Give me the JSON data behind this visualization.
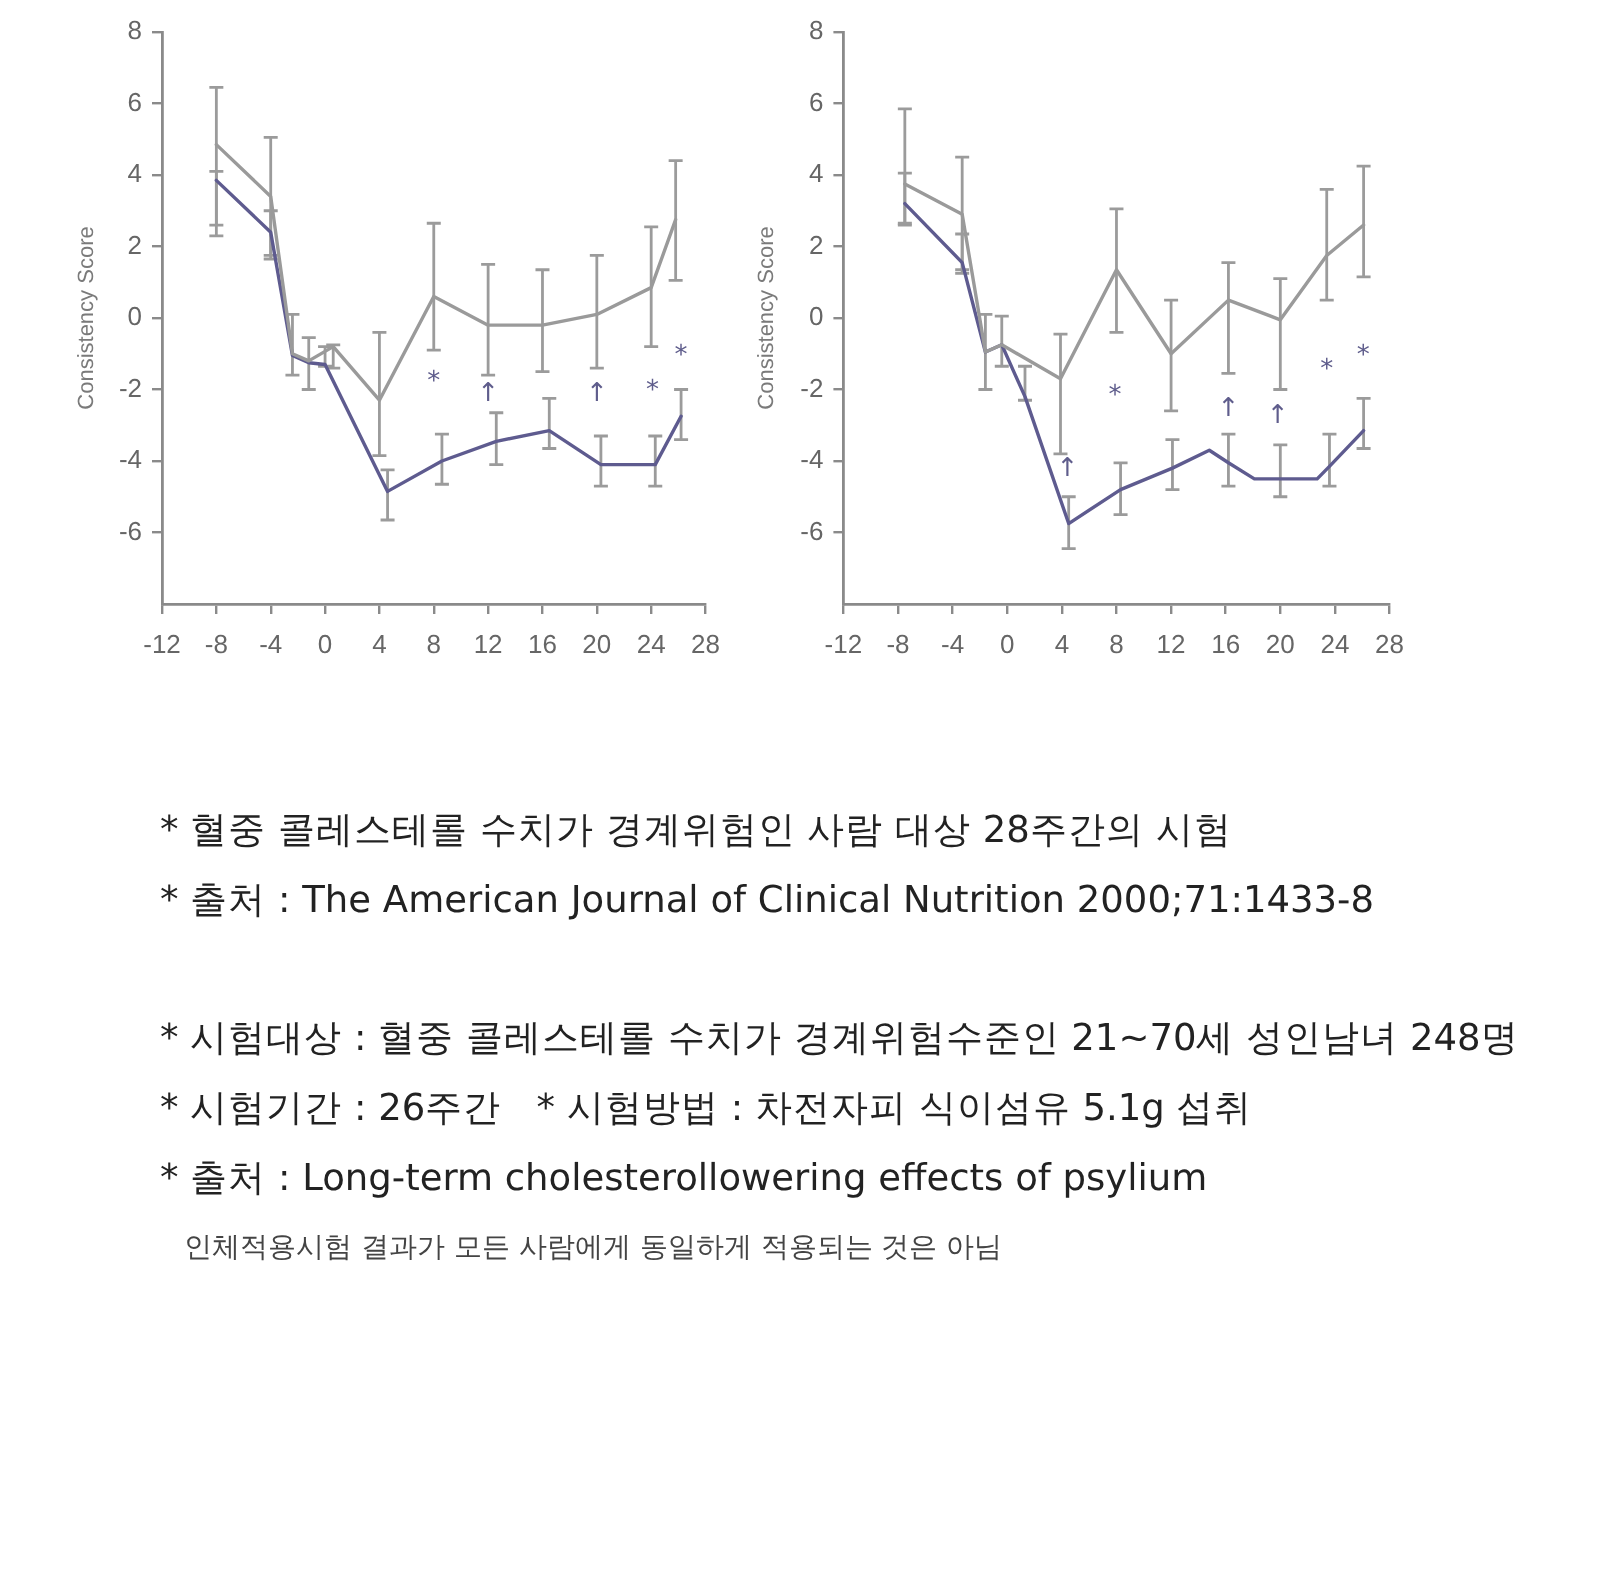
{
  "chart_data": [
    {
      "type": "line",
      "ylabel": "Consistency Score",
      "xlim": [
        -12,
        28
      ],
      "xticks": [
        -12,
        -8,
        -4,
        0,
        4,
        8,
        12,
        16,
        20,
        24,
        28
      ],
      "ylim": [
        -8,
        8
      ],
      "yticks": [
        8,
        6,
        4,
        2,
        0,
        -2,
        -4,
        -6
      ],
      "series": [
        {
          "color": "#9a9a9a",
          "x": [
            -8,
            -4,
            -2.4,
            -1.2,
            0.6,
            4,
            8,
            12,
            16,
            20,
            24,
            25.8
          ],
          "values": [
            4.85,
            3.4,
            -1.0,
            -1.2,
            -0.8,
            -2.3,
            0.6,
            -0.2,
            -0.2,
            0.1,
            0.85,
            2.75
          ],
          "errors": [
            [
              2.6,
              6.45
            ],
            [
              1.75,
              5.05
            ],
            [
              -1.6,
              0.1
            ],
            [
              -2.0,
              -0.55
            ],
            [
              -1.4,
              -0.75
            ],
            [
              -3.85,
              -0.4
            ],
            [
              -0.9,
              2.65
            ],
            [
              -1.6,
              1.5
            ],
            [
              -1.5,
              1.35
            ],
            [
              -1.4,
              1.75
            ],
            [
              -0.8,
              2.55
            ],
            [
              1.05,
              4.4
            ]
          ]
        },
        {
          "color": "#5e5b8f",
          "x": [
            -8,
            -4,
            -2.4,
            -1.2,
            0,
            4.6,
            8.6,
            12.6,
            16.5,
            20.3,
            24.3,
            26.2
          ],
          "values": [
            3.85,
            2.4,
            -1.05,
            -1.25,
            -1.3,
            -4.85,
            -4.0,
            -3.45,
            -3.15,
            -4.1,
            -4.1,
            -2.75
          ],
          "errors": [
            [
              2.3,
              4.1
            ],
            [
              1.65,
              3.0
            ],
            null,
            null,
            [
              -1.35,
              -0.8
            ],
            [
              -5.65,
              -4.25
            ],
            [
              -4.65,
              -3.25
            ],
            [
              -4.1,
              -2.65
            ],
            [
              -3.65,
              -2.25
            ],
            [
              -4.7,
              -3.3
            ],
            [
              -4.7,
              -3.3
            ],
            [
              -3.4,
              -2.0
            ]
          ]
        }
      ],
      "annotations": [
        "*",
        "↑",
        "↑",
        "*",
        "*"
      ]
    },
    {
      "type": "line",
      "ylabel": "Consistency Score",
      "xlim": [
        -12,
        28
      ],
      "xticks": [
        -12,
        -8,
        -4,
        0,
        4,
        8,
        12,
        16,
        20,
        24,
        28
      ],
      "ylim": [
        -8,
        8
      ],
      "yticks": [
        8,
        6,
        4,
        2,
        0,
        -2,
        -4,
        -6
      ],
      "series": [
        {
          "color": "#9a9a9a",
          "x": [
            -7.5,
            -3.3,
            -1.6,
            -0.4,
            3.9,
            8,
            12,
            16.2,
            20,
            23.4,
            26.1
          ],
          "values": [
            3.75,
            2.9,
            -0.95,
            -0.75,
            -1.7,
            1.35,
            -1.0,
            0.5,
            -0.05,
            1.75,
            2.6
          ],
          "errors": [
            [
              2.6,
              5.85
            ],
            [
              1.35,
              4.5
            ],
            [
              -2.0,
              0.1
            ],
            [
              -1.35,
              0.05
            ],
            [
              -3.8,
              -0.45
            ],
            [
              -0.4,
              3.05
            ],
            [
              -2.6,
              0.5
            ],
            [
              -1.55,
              1.55
            ],
            [
              -2.0,
              1.1
            ],
            [
              0.5,
              3.6
            ],
            [
              1.15,
              4.25
            ]
          ]
        },
        {
          "color": "#5e5b8f",
          "x": [
            -7.5,
            -3.3,
            -1.6,
            -0.4,
            1.3,
            4.5,
            8.3,
            12.1,
            14.8,
            16.2,
            18.1,
            20,
            22.7,
            23.6,
            26.1
          ],
          "values": [
            3.2,
            1.55,
            -0.95,
            -0.75,
            -2.2,
            -5.75,
            -4.8,
            -4.2,
            -3.7,
            -4.05,
            -4.5,
            -4.5,
            -4.5,
            -4.15,
            -3.15
          ],
          "errors": [
            [
              2.65,
              4.05
            ],
            [
              1.25,
              2.35
            ],
            null,
            null,
            [
              -2.3,
              -1.35
            ],
            [
              -6.45,
              -5.0
            ],
            [
              -5.5,
              -4.05
            ],
            [
              -4.8,
              -3.4
            ],
            null,
            [
              -4.7,
              -3.25
            ],
            null,
            [
              -5.0,
              -3.55
            ],
            null,
            [
              -4.7,
              -3.25
            ],
            [
              -3.65,
              -2.25
            ]
          ]
        }
      ],
      "annotations": [
        "↑",
        "*",
        "↑",
        "↑",
        "*",
        "*"
      ]
    },
    {
      "type": "other",
      "annotations": [
        "* 혈중 콜레스테롤 수치가 경계위험인 사람 대상 28주간의 시험",
        "* 출처 : The American Journal of Clinical Nutrition 2000;71:1433-8",
        "* 시험대상 : 혈중 콜레스테롤 수치가 경계위험수준인 21~70세 성인남녀 248명",
        "* 시험기간 : 26주간   * 시험방법 : 차전자피 식이섬유 5.1g 섭취",
        "* 출처 : Long-term cholesterollowering effects of psylium",
        "인체적용시험 결과가 모든 사람에게 동일하게 적용되는 것은 아님"
      ]
    }
  ]
}
